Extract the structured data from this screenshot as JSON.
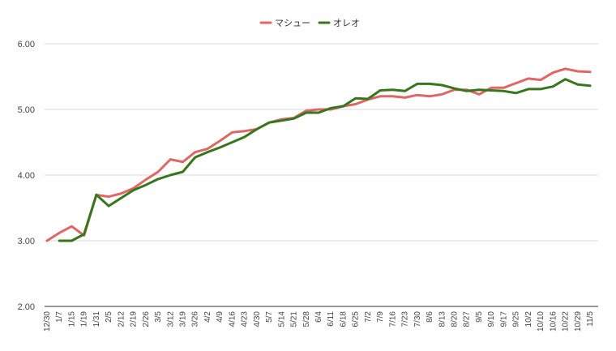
{
  "chart_data": {
    "type": "line",
    "title": "",
    "xlabel": "",
    "ylabel": "",
    "ylim": [
      2.0,
      6.0
    ],
    "yticks": [
      "2.00",
      "3.00",
      "4.00",
      "5.00",
      "6.00"
    ],
    "grid": true,
    "legend_position": "top-center",
    "categories": [
      "12/30",
      "1/7",
      "1/15",
      "1/19",
      "1/31",
      "2/5",
      "2/12",
      "2/19",
      "2/26",
      "3/5",
      "3/12",
      "3/19",
      "3/26",
      "4/2",
      "4/9",
      "4/16",
      "4/23",
      "4/30",
      "5/7",
      "5/14",
      "5/21",
      "5/28",
      "6/4",
      "6/11",
      "6/18",
      "6/25",
      "7/2",
      "7/9",
      "7/16",
      "7/23",
      "7/30",
      "8/6",
      "8/13",
      "8/20",
      "8/27",
      "9/5",
      "9/10",
      "9/17",
      "9/25",
      "10/2",
      "10/10",
      "10/16",
      "10/22",
      "10/29",
      "11/5"
    ],
    "series": [
      {
        "name": "マシュー",
        "color": "#e06666",
        "values": [
          3.0,
          3.12,
          3.22,
          3.08,
          3.7,
          3.67,
          3.72,
          3.8,
          3.93,
          4.05,
          4.24,
          4.2,
          4.35,
          4.4,
          4.52,
          4.65,
          4.67,
          4.7,
          4.8,
          4.85,
          4.87,
          4.98,
          5.0,
          5.0,
          5.05,
          5.08,
          5.15,
          5.2,
          5.2,
          5.18,
          5.22,
          5.2,
          5.23,
          5.3,
          5.3,
          5.23,
          5.33,
          5.33,
          5.4,
          5.47,
          5.45,
          5.56,
          5.62,
          5.58,
          5.57
        ]
      },
      {
        "name": "オレオ",
        "color": "#38761d",
        "values": [
          null,
          3.0,
          3.0,
          3.1,
          3.7,
          3.53,
          3.65,
          3.77,
          3.85,
          3.94,
          4.0,
          4.05,
          4.27,
          4.35,
          4.42,
          4.5,
          4.58,
          4.7,
          4.8,
          4.83,
          4.86,
          4.95,
          4.95,
          5.02,
          5.05,
          5.17,
          5.16,
          5.29,
          5.3,
          5.28,
          5.39,
          5.39,
          5.37,
          5.32,
          5.28,
          5.3,
          5.29,
          5.28,
          5.25,
          5.31,
          5.31,
          5.35,
          5.46,
          5.38,
          5.36
        ]
      }
    ]
  }
}
